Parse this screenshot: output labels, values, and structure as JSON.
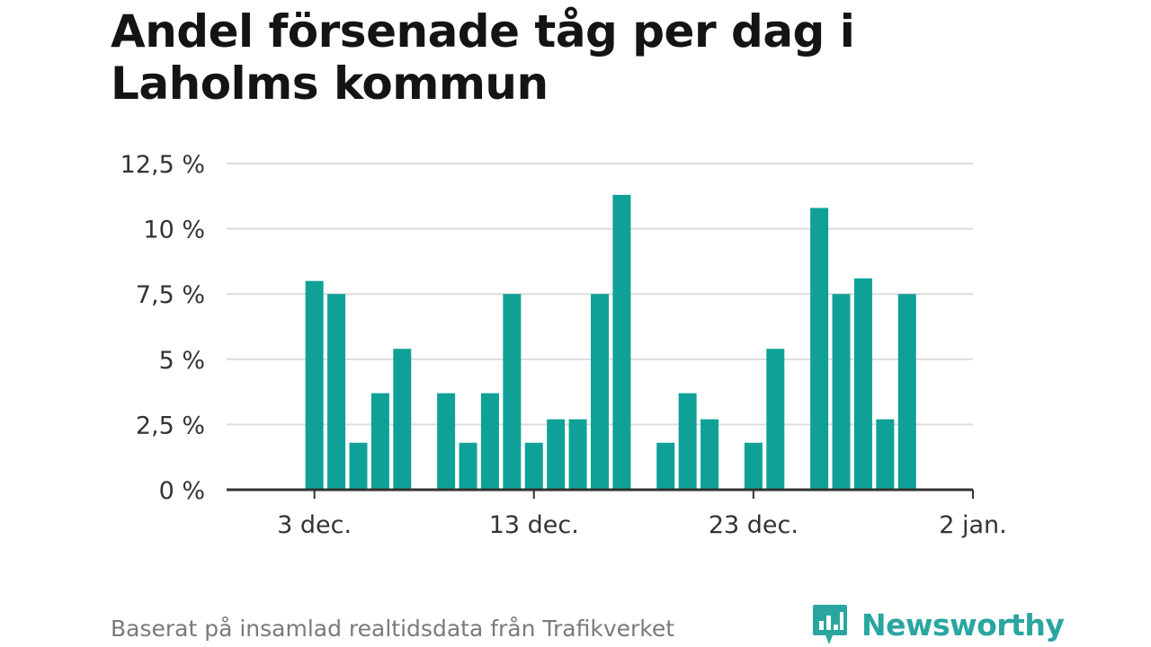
{
  "chart_data": {
    "type": "bar",
    "title": "Andel försenade tåg per dag i Laholms kommun",
    "ylabel": "",
    "xlabel": "",
    "ylim": [
      0,
      12.5
    ],
    "yticks": [
      0,
      2.5,
      5,
      7.5,
      10,
      12.5
    ],
    "ytick_labels": [
      "0 %",
      "2,5 %",
      "5 %",
      "7,5 %",
      "10 %",
      "12,5 %"
    ],
    "x_start": "2023-11-29",
    "xticks": [
      {
        "day": 4,
        "label": "3 dec."
      },
      {
        "day": 14,
        "label": "13 dec."
      },
      {
        "day": 24,
        "label": "23 dec."
      },
      {
        "day": 34,
        "label": "2 jan."
      }
    ],
    "x_range": [
      0,
      34
    ],
    "grid": true,
    "bar_color": "#0fa197",
    "bars": [
      {
        "date": "2023-12-03",
        "value": 8.0
      },
      {
        "date": "2023-12-04",
        "value": 7.5
      },
      {
        "date": "2023-12-05",
        "value": 1.8
      },
      {
        "date": "2023-12-06",
        "value": 3.7
      },
      {
        "date": "2023-12-07",
        "value": 5.4
      },
      {
        "date": "2023-12-09",
        "value": 3.7
      },
      {
        "date": "2023-12-10",
        "value": 1.8
      },
      {
        "date": "2023-12-11",
        "value": 3.7
      },
      {
        "date": "2023-12-12",
        "value": 7.5
      },
      {
        "date": "2023-12-13",
        "value": 1.8
      },
      {
        "date": "2023-12-14",
        "value": 2.7
      },
      {
        "date": "2023-12-15",
        "value": 2.7
      },
      {
        "date": "2023-12-16",
        "value": 7.5
      },
      {
        "date": "2023-12-17",
        "value": 11.3
      },
      {
        "date": "2023-12-19",
        "value": 1.8
      },
      {
        "date": "2023-12-20",
        "value": 3.7
      },
      {
        "date": "2023-12-21",
        "value": 2.7
      },
      {
        "date": "2023-12-23",
        "value": 1.8
      },
      {
        "date": "2023-12-24",
        "value": 5.4
      },
      {
        "date": "2023-12-26",
        "value": 10.8
      },
      {
        "date": "2023-12-27",
        "value": 7.5
      },
      {
        "date": "2023-12-28",
        "value": 8.1
      },
      {
        "date": "2023-12-29",
        "value": 2.7
      },
      {
        "date": "2023-12-30",
        "value": 7.5
      }
    ]
  },
  "footer": {
    "source": "Baserat på insamlad realtidsdata från Trafikverket",
    "brand": "Newsworthy",
    "brand_icon": "bar-chart-speech-bubble-icon",
    "brand_color": "#2aa6a0"
  }
}
